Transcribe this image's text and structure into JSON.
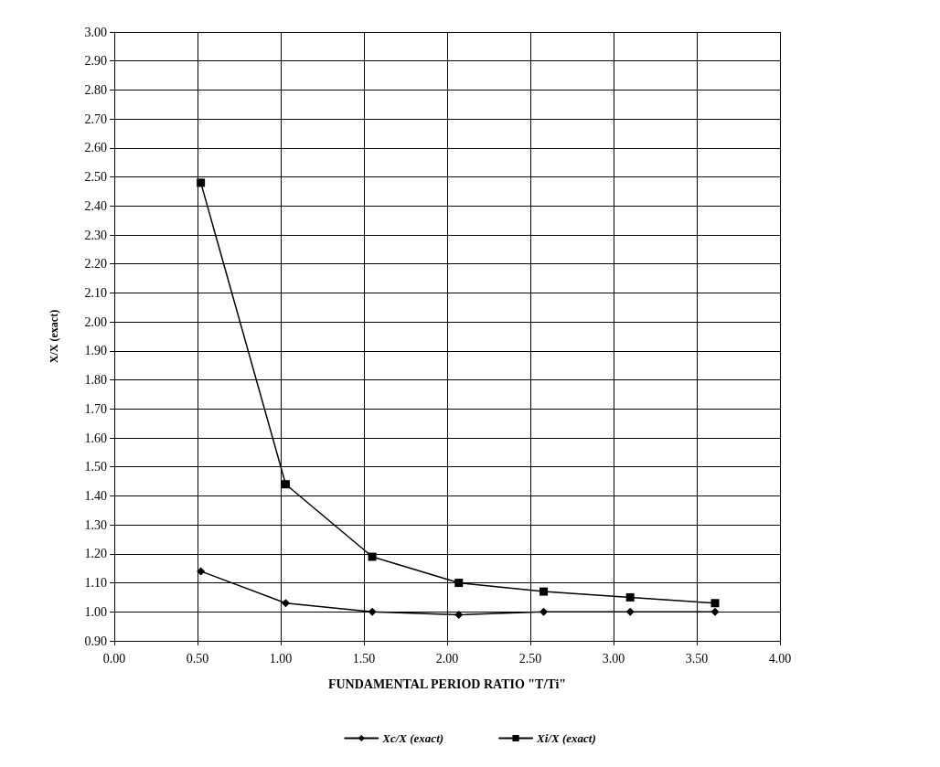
{
  "chart_data": {
    "type": "line",
    "xlabel": "FUNDAMENTAL PERIOD RATIO \"T/Ti\"",
    "ylabel": "X/X (exact)",
    "x": [
      0.52,
      1.03,
      1.55,
      2.07,
      2.58,
      3.1,
      3.61
    ],
    "series": [
      {
        "name": "Xc/X (exact)",
        "color": "#000000",
        "marker": "diamond",
        "values": [
          1.14,
          1.03,
          1.0,
          0.99,
          1.0,
          1.0,
          1.0
        ]
      },
      {
        "name": "Xi/X (exact)",
        "color": "#000000",
        "marker": "square",
        "values": [
          2.48,
          1.44,
          1.19,
          1.1,
          1.07,
          1.05,
          1.03
        ]
      }
    ],
    "xlim": [
      0,
      4
    ],
    "xticks": [
      {
        "value": 0,
        "label": "0.00"
      },
      {
        "value": 0.5,
        "label": "0.50"
      },
      {
        "value": 1,
        "label": "1.00"
      },
      {
        "value": 1.5,
        "label": "1.50"
      },
      {
        "value": 2,
        "label": "2.00"
      },
      {
        "value": 2.5,
        "label": "2.50"
      },
      {
        "value": 3,
        "label": "3.00"
      },
      {
        "value": 3.5,
        "label": "3.50"
      },
      {
        "value": 4,
        "label": "4.00"
      }
    ],
    "ylim": [
      0.9,
      3
    ],
    "yticks": [
      {
        "value": 0.9,
        "label": "0.90"
      },
      {
        "value": 1,
        "label": "1.00"
      },
      {
        "value": 1.1,
        "label": "1.10"
      },
      {
        "value": 1.2,
        "label": "1.20"
      },
      {
        "value": 1.3,
        "label": "1.30"
      },
      {
        "value": 1.4,
        "label": "1.40"
      },
      {
        "value": 1.5,
        "label": "1.50"
      },
      {
        "value": 1.6,
        "label": "1.60"
      },
      {
        "value": 1.7,
        "label": "1.70"
      },
      {
        "value": 1.8,
        "label": "1.80"
      },
      {
        "value": 1.9,
        "label": "1.90"
      },
      {
        "value": 2,
        "label": "2.00"
      },
      {
        "value": 2.1,
        "label": "2.10"
      },
      {
        "value": 2.2,
        "label": "2.20"
      },
      {
        "value": 2.3,
        "label": "2.30"
      },
      {
        "value": 2.4,
        "label": "2.40"
      },
      {
        "value": 2.5,
        "label": "2.50"
      },
      {
        "value": 2.6,
        "label": "2.60"
      },
      {
        "value": 2.7,
        "label": "2.70"
      },
      {
        "value": 2.8,
        "label": "2.80"
      },
      {
        "value": 2.9,
        "label": "2.90"
      },
      {
        "value": 3,
        "label": "3.00"
      }
    ],
    "grid": true,
    "legend": "bottom",
    "line_style": "solid"
  }
}
